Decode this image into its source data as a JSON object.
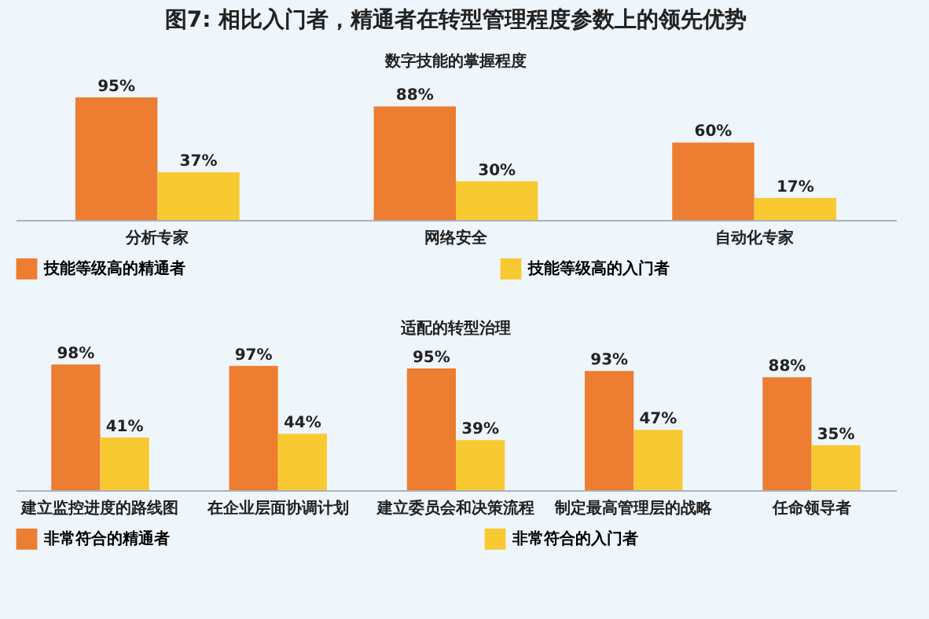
{
  "chart_data": [
    {
      "type": "bar",
      "title": "图7: 相比入门者，精通者在转型管理程度参数上的领先优势",
      "subtitle": "数字技能的掌握程度",
      "categories": [
        "分析专家",
        "网络安全",
        "自动化专家"
      ],
      "legend": "bottom",
      "series": [
        {
          "name": "技能等级高的精通者",
          "color": "#ed7d31",
          "values": [
            95,
            88,
            60
          ],
          "value_labels": [
            "95%",
            "88%",
            "60%"
          ]
        },
        {
          "name": "技能等级高的入门者",
          "color": "#f9c932",
          "values": [
            37,
            30,
            17
          ],
          "value_labels": [
            "37%",
            "30%",
            "17%"
          ]
        }
      ]
    },
    {
      "type": "bar",
      "title": "适配的转型治理",
      "categories": [
        "建立监控进度的路线图",
        "在企业层面协调计划",
        "建立委员会和决策流程",
        "制定最高管理层的战略",
        "任命领导者"
      ],
      "legend": "bottom",
      "series": [
        {
          "name": "非常符合的精通者",
          "color": "#ed7d31",
          "values": [
            98,
            97,
            95,
            93,
            88
          ],
          "value_labels": [
            "98%",
            "97%",
            "95%",
            "93%",
            "88%"
          ]
        },
        {
          "name": "非常符合的入门者",
          "color": "#f9c932",
          "values": [
            41,
            44,
            39,
            47,
            35
          ],
          "value_labels": [
            "41%",
            "44%",
            "39%",
            "47%",
            "35%"
          ]
        }
      ]
    }
  ]
}
